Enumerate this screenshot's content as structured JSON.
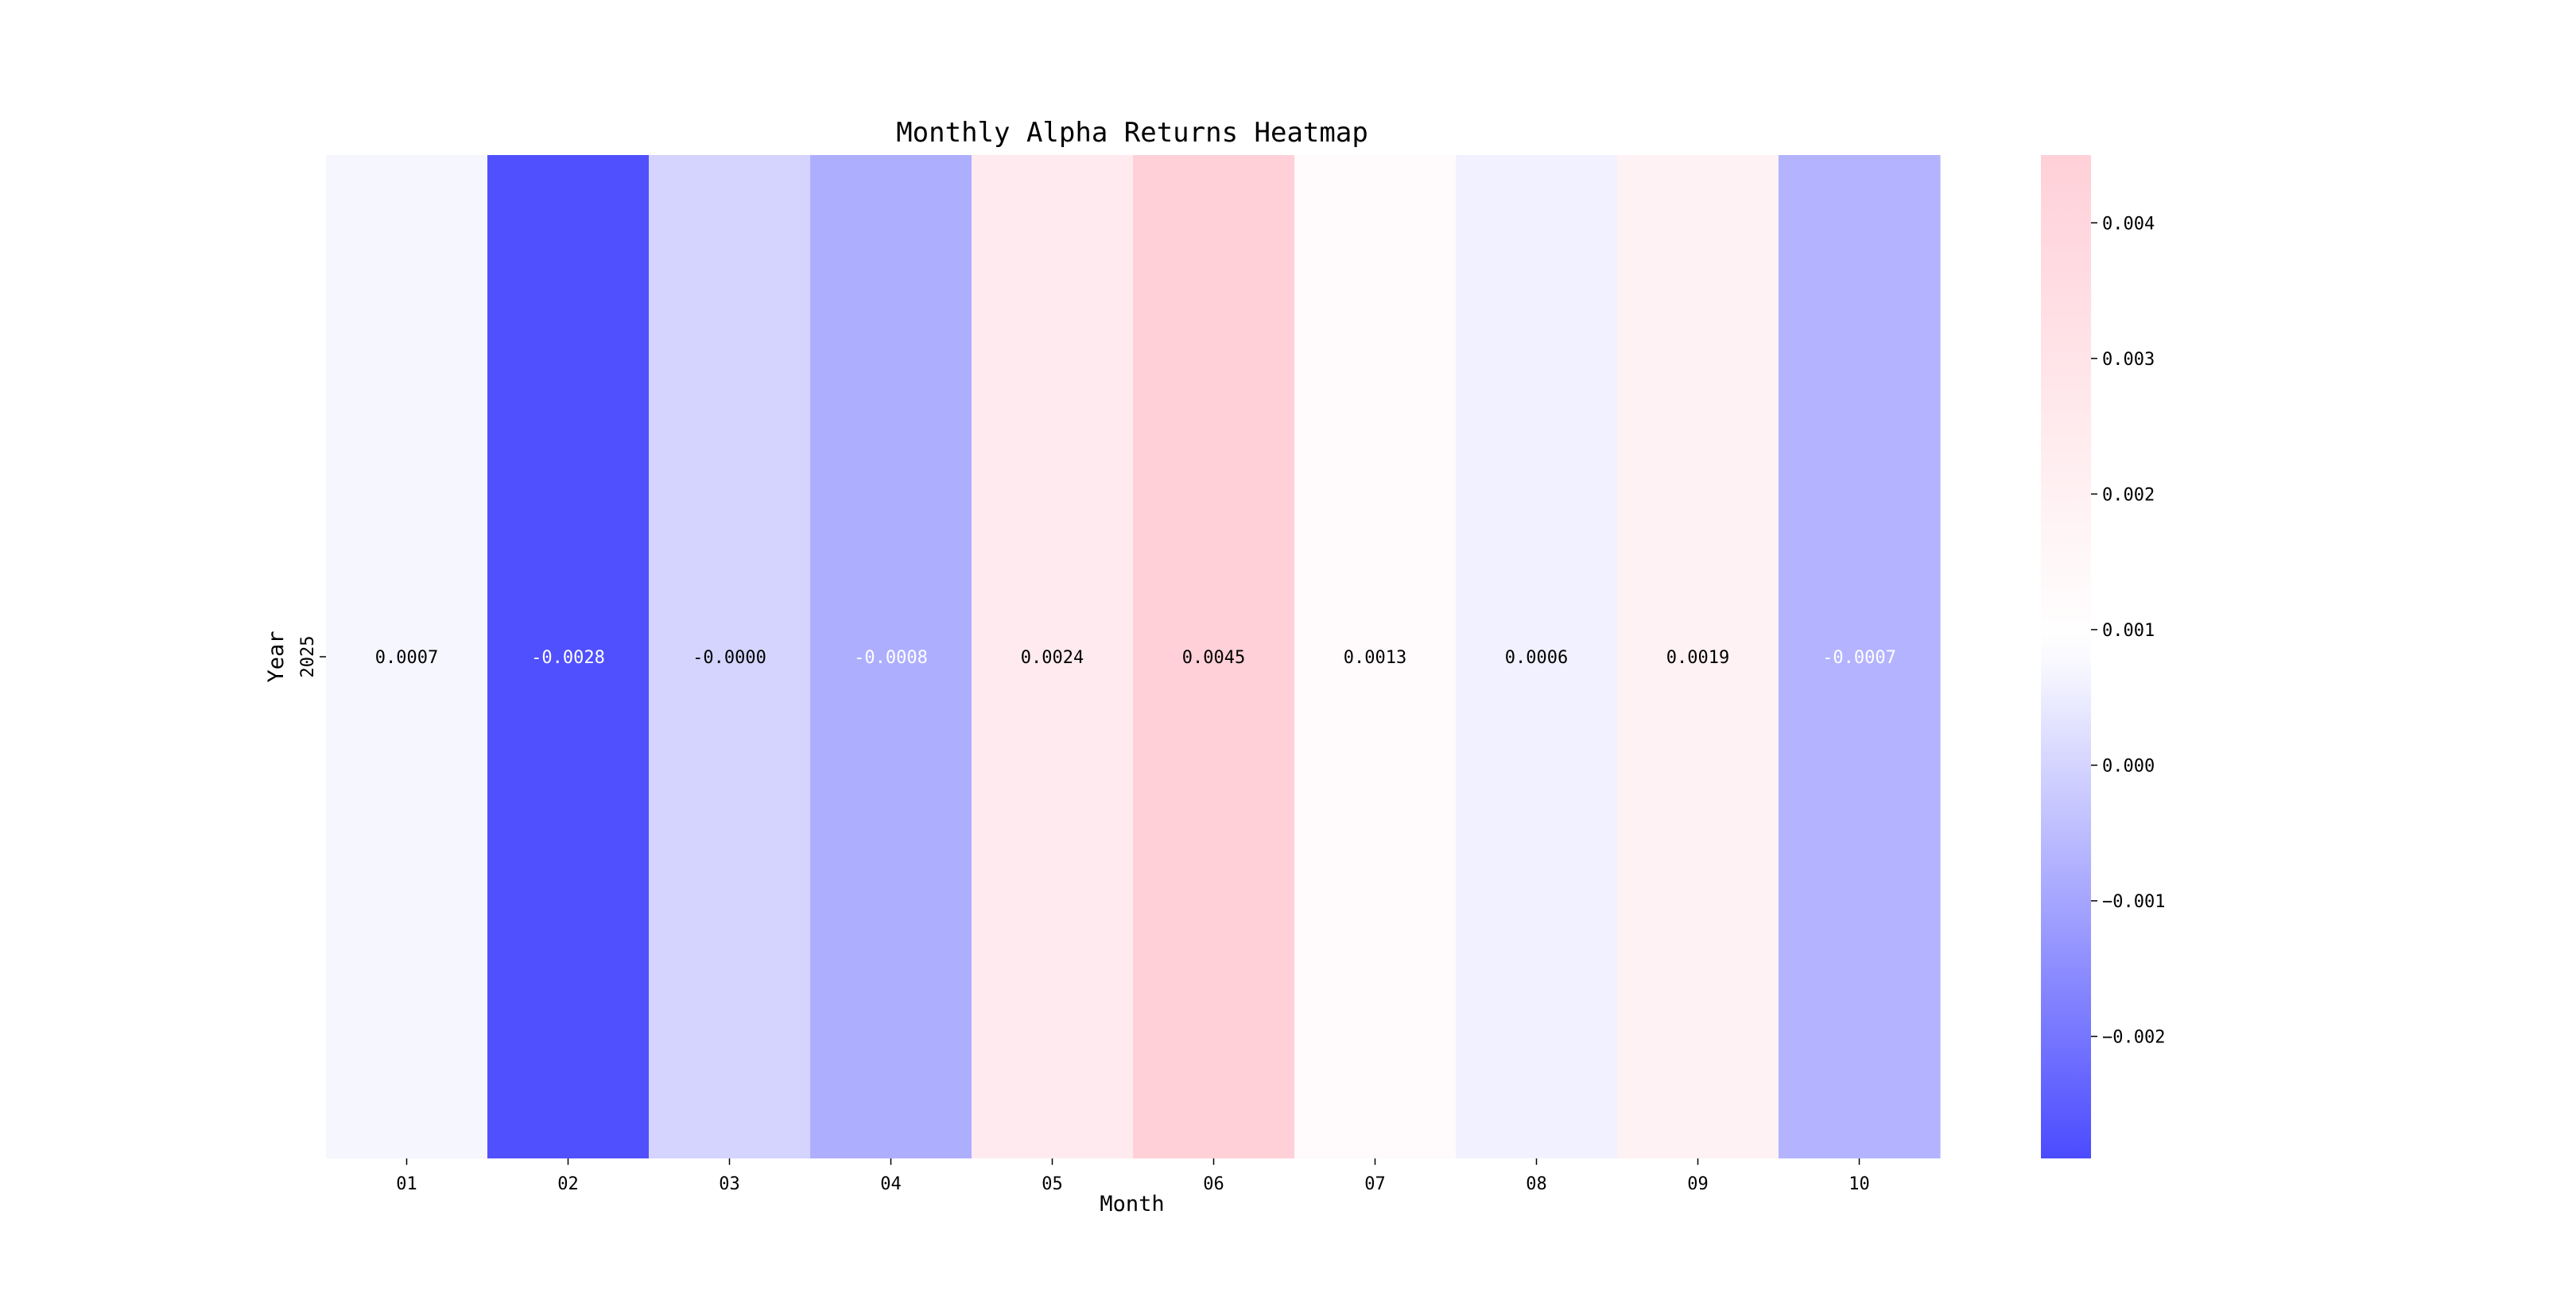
{
  "chart_data": {
    "type": "heatmap",
    "title": "Monthly Alpha Returns Heatmap",
    "xlabel": "Month",
    "ylabel": "Year",
    "x_categories": [
      "01",
      "02",
      "03",
      "04",
      "05",
      "06",
      "07",
      "08",
      "09",
      "10"
    ],
    "y_categories": [
      "2025"
    ],
    "values": [
      [
        0.0007,
        -0.0028,
        -0.0,
        -0.0008,
        0.0024,
        0.0045,
        0.0013,
        0.0006,
        0.0019,
        -0.0007
      ]
    ],
    "cell_labels": [
      [
        "0.0007",
        "-0.0028",
        "-0.0000",
        "-0.0008",
        "0.0024",
        "0.0045",
        "0.0013",
        "0.0006",
        "0.0019",
        "-0.0007"
      ]
    ],
    "colormap": {
      "low_color": "#4b4bff",
      "mid_color": "#ffffff",
      "high_color": "#ffd0d8",
      "vmin": -0.0029,
      "vcenter": 0.0009,
      "vmax": 0.0045
    },
    "colorbar": {
      "ticks": [
        -0.002,
        -0.001,
        0.0,
        0.001,
        0.002,
        0.003,
        0.004
      ],
      "tick_labels": [
        "−0.002",
        "−0.001",
        "0.000",
        "0.001",
        "0.002",
        "0.003",
        "0.004"
      ]
    },
    "grid": false,
    "legend": "colorbar-right"
  }
}
